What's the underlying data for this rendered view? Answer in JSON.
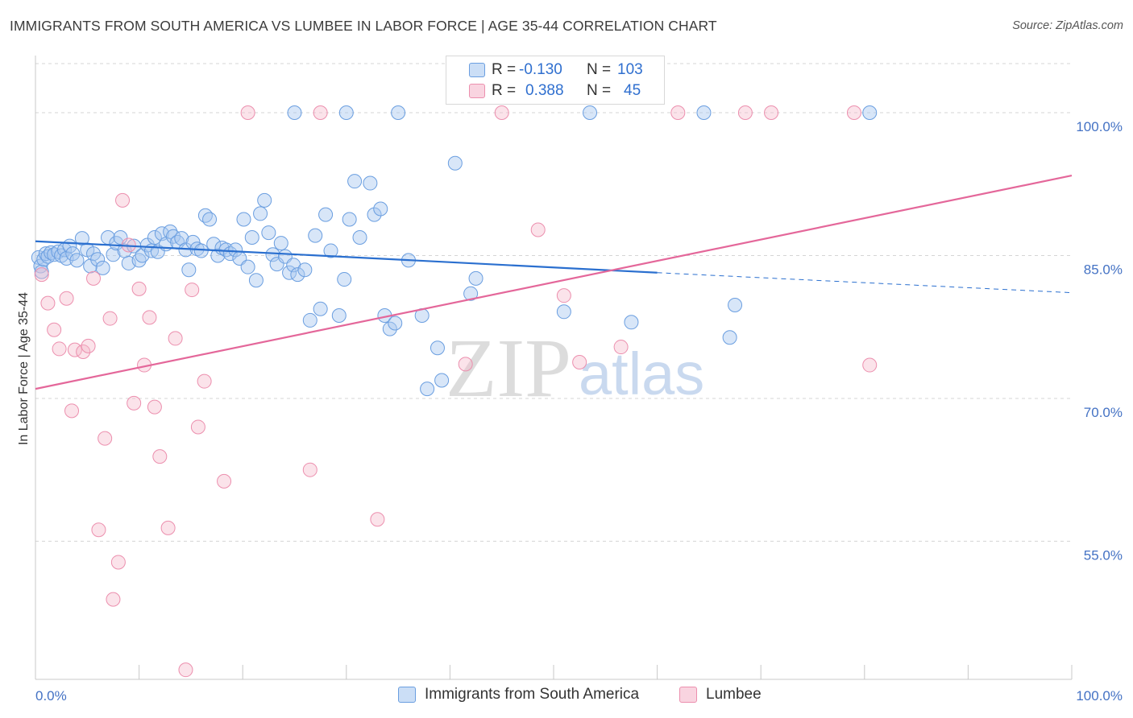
{
  "header": {
    "title": "IMMIGRANTS FROM SOUTH AMERICA VS LUMBEE IN LABOR FORCE | AGE 35-44 CORRELATION CHART",
    "source": "Source: ZipAtlas.com"
  },
  "watermark": {
    "zip": "ZIP",
    "atlas": "atlas"
  },
  "legend": {
    "rows": [
      {
        "r_label": "R =",
        "r_value": "-0.130",
        "n_label": "N =",
        "n_value": "103",
        "color": "#a8c8f0"
      },
      {
        "r_label": "R =",
        "r_value": "0.388",
        "n_label": "N =",
        "n_value": "45",
        "color": "#f5b8cb"
      }
    ]
  },
  "bottom_legend": {
    "series1": "Immigrants from South America",
    "series2": "Lumbee"
  },
  "colors": {
    "blue_fill": "rgba(168,200,240,0.45)",
    "blue_stroke": "#6a9ee0",
    "blue_line": "#2a6fcf",
    "pink_fill": "rgba(245,184,203,0.40)",
    "pink_stroke": "#ec8fae",
    "pink_line": "#e4679a",
    "tick_text": "#4472c4",
    "grid": "#d5d5d5"
  },
  "chart_data": {
    "type": "scatter",
    "title": "IMMIGRANTS FROM SOUTH AMERICA VS LUMBEE IN LABOR FORCE | AGE 35-44 CORRELATION CHART",
    "xlabel": "",
    "ylabel": "In Labor Force | Age 35-44",
    "xlim": [
      0,
      100
    ],
    "ylim": [
      40.5,
      106
    ],
    "x_tick_labels": [
      "0.0%",
      "100.0%"
    ],
    "y_ticks": [
      55,
      70,
      85,
      100
    ],
    "y_tick_labels": [
      "55.0%",
      "70.0%",
      "85.0%",
      "100.0%"
    ],
    "grid": true,
    "legend_position": "top-center",
    "series": [
      {
        "name": "Immigrants from South America",
        "color": "#6a9ee0",
        "trend": {
          "x0": 0,
          "y0": 86.5,
          "x1": 60,
          "y1": 83.2,
          "dash_to_x": 100,
          "dash_to_y": 81.1
        },
        "points": [
          [
            0.3,
            84.8
          ],
          [
            0.5,
            83.9
          ],
          [
            0.6,
            83.3
          ],
          [
            0.8,
            84.6
          ],
          [
            1.0,
            85.2
          ],
          [
            1.2,
            84.9
          ],
          [
            1.5,
            85.3
          ],
          [
            1.8,
            85.1
          ],
          [
            2.2,
            85.4
          ],
          [
            2.5,
            85.0
          ],
          [
            2.8,
            85.6
          ],
          [
            3.0,
            84.7
          ],
          [
            3.3,
            86.0
          ],
          [
            3.6,
            85.2
          ],
          [
            4.0,
            84.5
          ],
          [
            4.5,
            86.8
          ],
          [
            5.0,
            85.6
          ],
          [
            5.3,
            83.9
          ],
          [
            5.6,
            85.2
          ],
          [
            6.0,
            84.6
          ],
          [
            6.5,
            83.7
          ],
          [
            7.0,
            86.9
          ],
          [
            7.5,
            85.1
          ],
          [
            7.8,
            86.3
          ],
          [
            8.2,
            86.9
          ],
          [
            8.6,
            85.5
          ],
          [
            9.0,
            84.2
          ],
          [
            9.5,
            86.0
          ],
          [
            10.0,
            84.5
          ],
          [
            10.3,
            85.0
          ],
          [
            10.8,
            86.1
          ],
          [
            11.2,
            85.5
          ],
          [
            11.5,
            86.9
          ],
          [
            11.8,
            85.4
          ],
          [
            12.2,
            87.3
          ],
          [
            12.6,
            86.2
          ],
          [
            13.0,
            87.5
          ],
          [
            13.3,
            87.0
          ],
          [
            13.7,
            86.4
          ],
          [
            14.1,
            86.8
          ],
          [
            14.5,
            85.6
          ],
          [
            14.8,
            83.5
          ],
          [
            15.2,
            86.4
          ],
          [
            15.6,
            85.7
          ],
          [
            16.0,
            85.5
          ],
          [
            16.4,
            89.2
          ],
          [
            16.8,
            88.8
          ],
          [
            17.2,
            86.2
          ],
          [
            17.6,
            85.0
          ],
          [
            18.0,
            85.8
          ],
          [
            18.4,
            85.6
          ],
          [
            18.8,
            85.2
          ],
          [
            19.3,
            85.6
          ],
          [
            19.7,
            84.7
          ],
          [
            20.1,
            88.8
          ],
          [
            20.5,
            83.8
          ],
          [
            20.9,
            86.9
          ],
          [
            21.3,
            82.4
          ],
          [
            21.7,
            89.4
          ],
          [
            22.1,
            90.8
          ],
          [
            22.5,
            87.4
          ],
          [
            22.9,
            85.1
          ],
          [
            23.3,
            84.1
          ],
          [
            23.7,
            86.3
          ],
          [
            24.1,
            84.9
          ],
          [
            24.5,
            83.2
          ],
          [
            24.9,
            84.0
          ],
          [
            25.3,
            83.0
          ],
          [
            26.0,
            83.5
          ],
          [
            26.5,
            78.2
          ],
          [
            27.0,
            87.1
          ],
          [
            27.5,
            79.4
          ],
          [
            28.0,
            89.3
          ],
          [
            28.5,
            85.5
          ],
          [
            29.3,
            78.7
          ],
          [
            29.8,
            82.5
          ],
          [
            30.3,
            88.8
          ],
          [
            30.8,
            92.8
          ],
          [
            31.3,
            86.9
          ],
          [
            32.3,
            92.6
          ],
          [
            32.7,
            89.3
          ],
          [
            33.3,
            89.9
          ],
          [
            33.7,
            78.7
          ],
          [
            34.2,
            77.3
          ],
          [
            34.7,
            77.9
          ],
          [
            30.0,
            100.0
          ],
          [
            35.0,
            100.0
          ],
          [
            36.0,
            84.5
          ],
          [
            37.3,
            78.7
          ],
          [
            37.8,
            71.0
          ],
          [
            38.8,
            75.3
          ],
          [
            39.2,
            71.9
          ],
          [
            40.5,
            94.7
          ],
          [
            42.0,
            81.0
          ],
          [
            42.5,
            82.6
          ],
          [
            51.0,
            79.1
          ],
          [
            53.5,
            100.0
          ],
          [
            57.5,
            78.0
          ],
          [
            67.0,
            76.4
          ],
          [
            67.5,
            79.8
          ],
          [
            80.5,
            100.0
          ],
          [
            64.5,
            100.0
          ],
          [
            25.0,
            100.0
          ]
        ]
      },
      {
        "name": "Lumbee",
        "color": "#ec8fae",
        "trend": {
          "x0": 0,
          "y0": 71.0,
          "x1": 100,
          "y1": 93.4
        },
        "points": [
          [
            0.6,
            83.0
          ],
          [
            1.2,
            80.0
          ],
          [
            1.8,
            77.2
          ],
          [
            2.3,
            75.2
          ],
          [
            3.0,
            80.5
          ],
          [
            3.5,
            68.7
          ],
          [
            3.8,
            75.1
          ],
          [
            4.6,
            74.9
          ],
          [
            5.1,
            75.5
          ],
          [
            5.6,
            82.6
          ],
          [
            6.1,
            56.2
          ],
          [
            6.7,
            65.8
          ],
          [
            7.2,
            78.4
          ],
          [
            8.0,
            52.8
          ],
          [
            8.4,
            90.8
          ],
          [
            9.0,
            86.1
          ],
          [
            9.5,
            69.5
          ],
          [
            10.0,
            81.5
          ],
          [
            10.5,
            73.5
          ],
          [
            11.0,
            78.5
          ],
          [
            11.5,
            69.1
          ],
          [
            12.0,
            63.9
          ],
          [
            12.8,
            56.4
          ],
          [
            13.5,
            76.3
          ],
          [
            14.5,
            41.5
          ],
          [
            15.1,
            81.4
          ],
          [
            15.7,
            67.0
          ],
          [
            16.3,
            71.8
          ],
          [
            18.2,
            61.3
          ],
          [
            20.5,
            100.0
          ],
          [
            26.5,
            62.5
          ],
          [
            27.5,
            100.0
          ],
          [
            33.0,
            57.3
          ],
          [
            41.5,
            73.6
          ],
          [
            48.5,
            87.7
          ],
          [
            51.0,
            80.8
          ],
          [
            52.5,
            73.8
          ],
          [
            56.5,
            75.4
          ],
          [
            62.0,
            100.0
          ],
          [
            68.5,
            100.0
          ],
          [
            71.0,
            100.0
          ],
          [
            80.5,
            73.5
          ],
          [
            79.0,
            100.0
          ],
          [
            7.5,
            48.9
          ],
          [
            45.0,
            100.0
          ]
        ]
      }
    ]
  }
}
